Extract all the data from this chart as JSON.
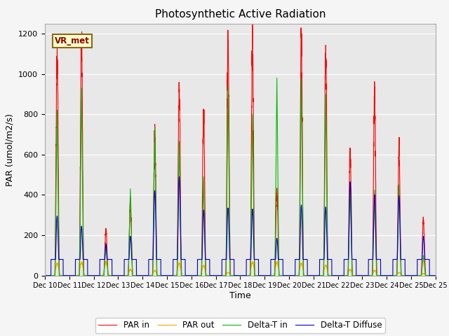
{
  "title": "Photosynthetic Active Radiation",
  "xlabel": "Time",
  "ylabel": "PAR (umol/m2/s)",
  "annotation": "VR_met",
  "ylim": [
    0,
    1250
  ],
  "yticks": [
    0,
    200,
    400,
    600,
    800,
    1000,
    1200
  ],
  "legend_labels": [
    "PAR in",
    "PAR out",
    "Delta-T in",
    "Delta-T Diffuse"
  ],
  "legend_colors": [
    "#ff0000",
    "#ffa500",
    "#00bb00",
    "#0000cc"
  ],
  "background_color": "#e8e8e8",
  "days": [
    "Dec 10",
    "Dec 11",
    "Dec 12",
    "Dec 13",
    "Dec 14",
    "Dec 15",
    "Dec 16",
    "Dec 17",
    "Dec 18",
    "Dec 19",
    "Dec 20",
    "Dec 21",
    "Dec 22",
    "Dec 23",
    "Dec 24",
    "Dec 25"
  ],
  "par_in_peaks": [
    1130,
    1175,
    225,
    360,
    710,
    930,
    800,
    1170,
    1145,
    430,
    1200,
    1105,
    615,
    895,
    615,
    270
  ],
  "par_out_peaks": [
    60,
    65,
    65,
    30,
    25,
    60,
    50,
    15,
    65,
    65,
    60,
    50,
    30,
    25,
    15,
    10
  ],
  "delta_t_peaks": [
    820,
    930,
    160,
    430,
    735,
    665,
    490,
    940,
    800,
    980,
    975,
    900,
    430,
    425,
    450,
    100
  ],
  "delta_d_peaks": [
    295,
    245,
    155,
    195,
    420,
    490,
    325,
    335,
    330,
    185,
    350,
    340,
    465,
    400,
    395,
    195
  ],
  "delta_d_base": 80,
  "fig_width": 6.4,
  "fig_height": 4.8,
  "dpi": 100
}
